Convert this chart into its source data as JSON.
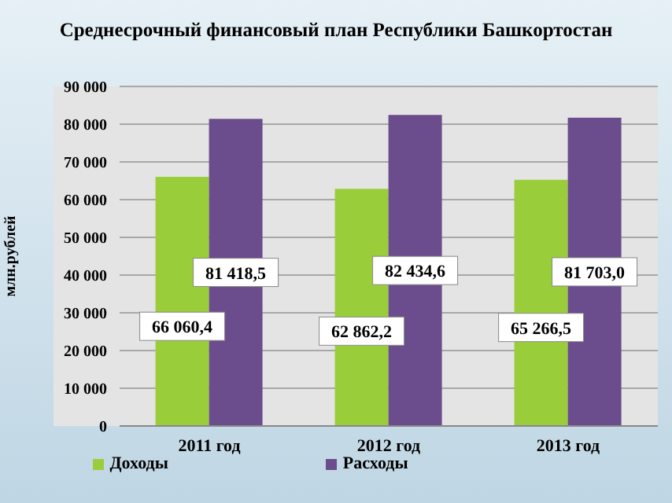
{
  "chart_data": {
    "type": "bar",
    "title": "Среднесрочный финансовый план Республики Башкортостан",
    "ylabel": "млн.рублей",
    "categories": [
      "2011 год",
      "2012 год",
      "2013 год"
    ],
    "series": [
      {
        "name": "Доходы",
        "color": "#9acd3a",
        "values": [
          66060.4,
          62862.2,
          65266.5
        ],
        "value_labels": [
          "66 060,4",
          "62 862,2",
          "65 266,5"
        ]
      },
      {
        "name": "Расходы",
        "color": "#6b4c8c",
        "values": [
          81418.5,
          82434.6,
          81703.0
        ],
        "value_labels": [
          "81 418,5",
          "82 434,6",
          "81 703,0"
        ]
      }
    ],
    "ylim": [
      0,
      90000
    ],
    "yticks": [
      {
        "value": 0,
        "label": "0"
      },
      {
        "value": 10000,
        "label": "10 000"
      },
      {
        "value": 20000,
        "label": "20 000"
      },
      {
        "value": 30000,
        "label": "30 000"
      },
      {
        "value": 40000,
        "label": "40 000"
      },
      {
        "value": 50000,
        "label": "50 000"
      },
      {
        "value": 60000,
        "label": "60 000"
      },
      {
        "value": 70000,
        "label": "70 000"
      },
      {
        "value": 80000,
        "label": "80 000"
      },
      {
        "value": 90000,
        "label": "90 000"
      }
    ],
    "grid": "y",
    "legend": "bottom"
  }
}
